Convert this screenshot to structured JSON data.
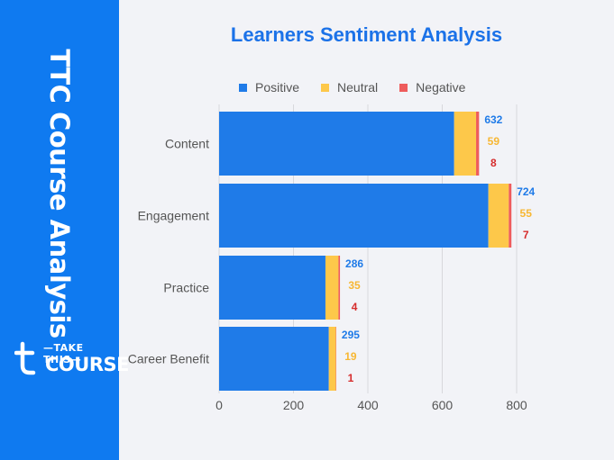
{
  "sidebar": {
    "title": "TTC Course Analysis",
    "logo_top": "—TAKE THIS—",
    "logo_bottom": "COURSE"
  },
  "colors": {
    "sidebar": "#0f7af0",
    "positive": "#1f7be8",
    "neutral": "#fdc84a",
    "negative": "#ee5c5c",
    "title": "#1b72e8"
  },
  "chart_data": {
    "type": "bar",
    "orientation": "horizontal",
    "stacked": true,
    "title": "Learners Sentiment Analysis",
    "categories": [
      "Content",
      "Engagement",
      "Practice",
      "Career Benefit"
    ],
    "series": [
      {
        "name": "Positive",
        "values": [
          632,
          724,
          286,
          295
        ]
      },
      {
        "name": "Neutral",
        "values": [
          59,
          55,
          35,
          19
        ]
      },
      {
        "name": "Negative",
        "values": [
          8,
          7,
          4,
          1
        ]
      }
    ],
    "xlim": [
      0,
      800
    ],
    "xticks": [
      0,
      200,
      400,
      600,
      800
    ],
    "grid": true,
    "legend": "top"
  }
}
